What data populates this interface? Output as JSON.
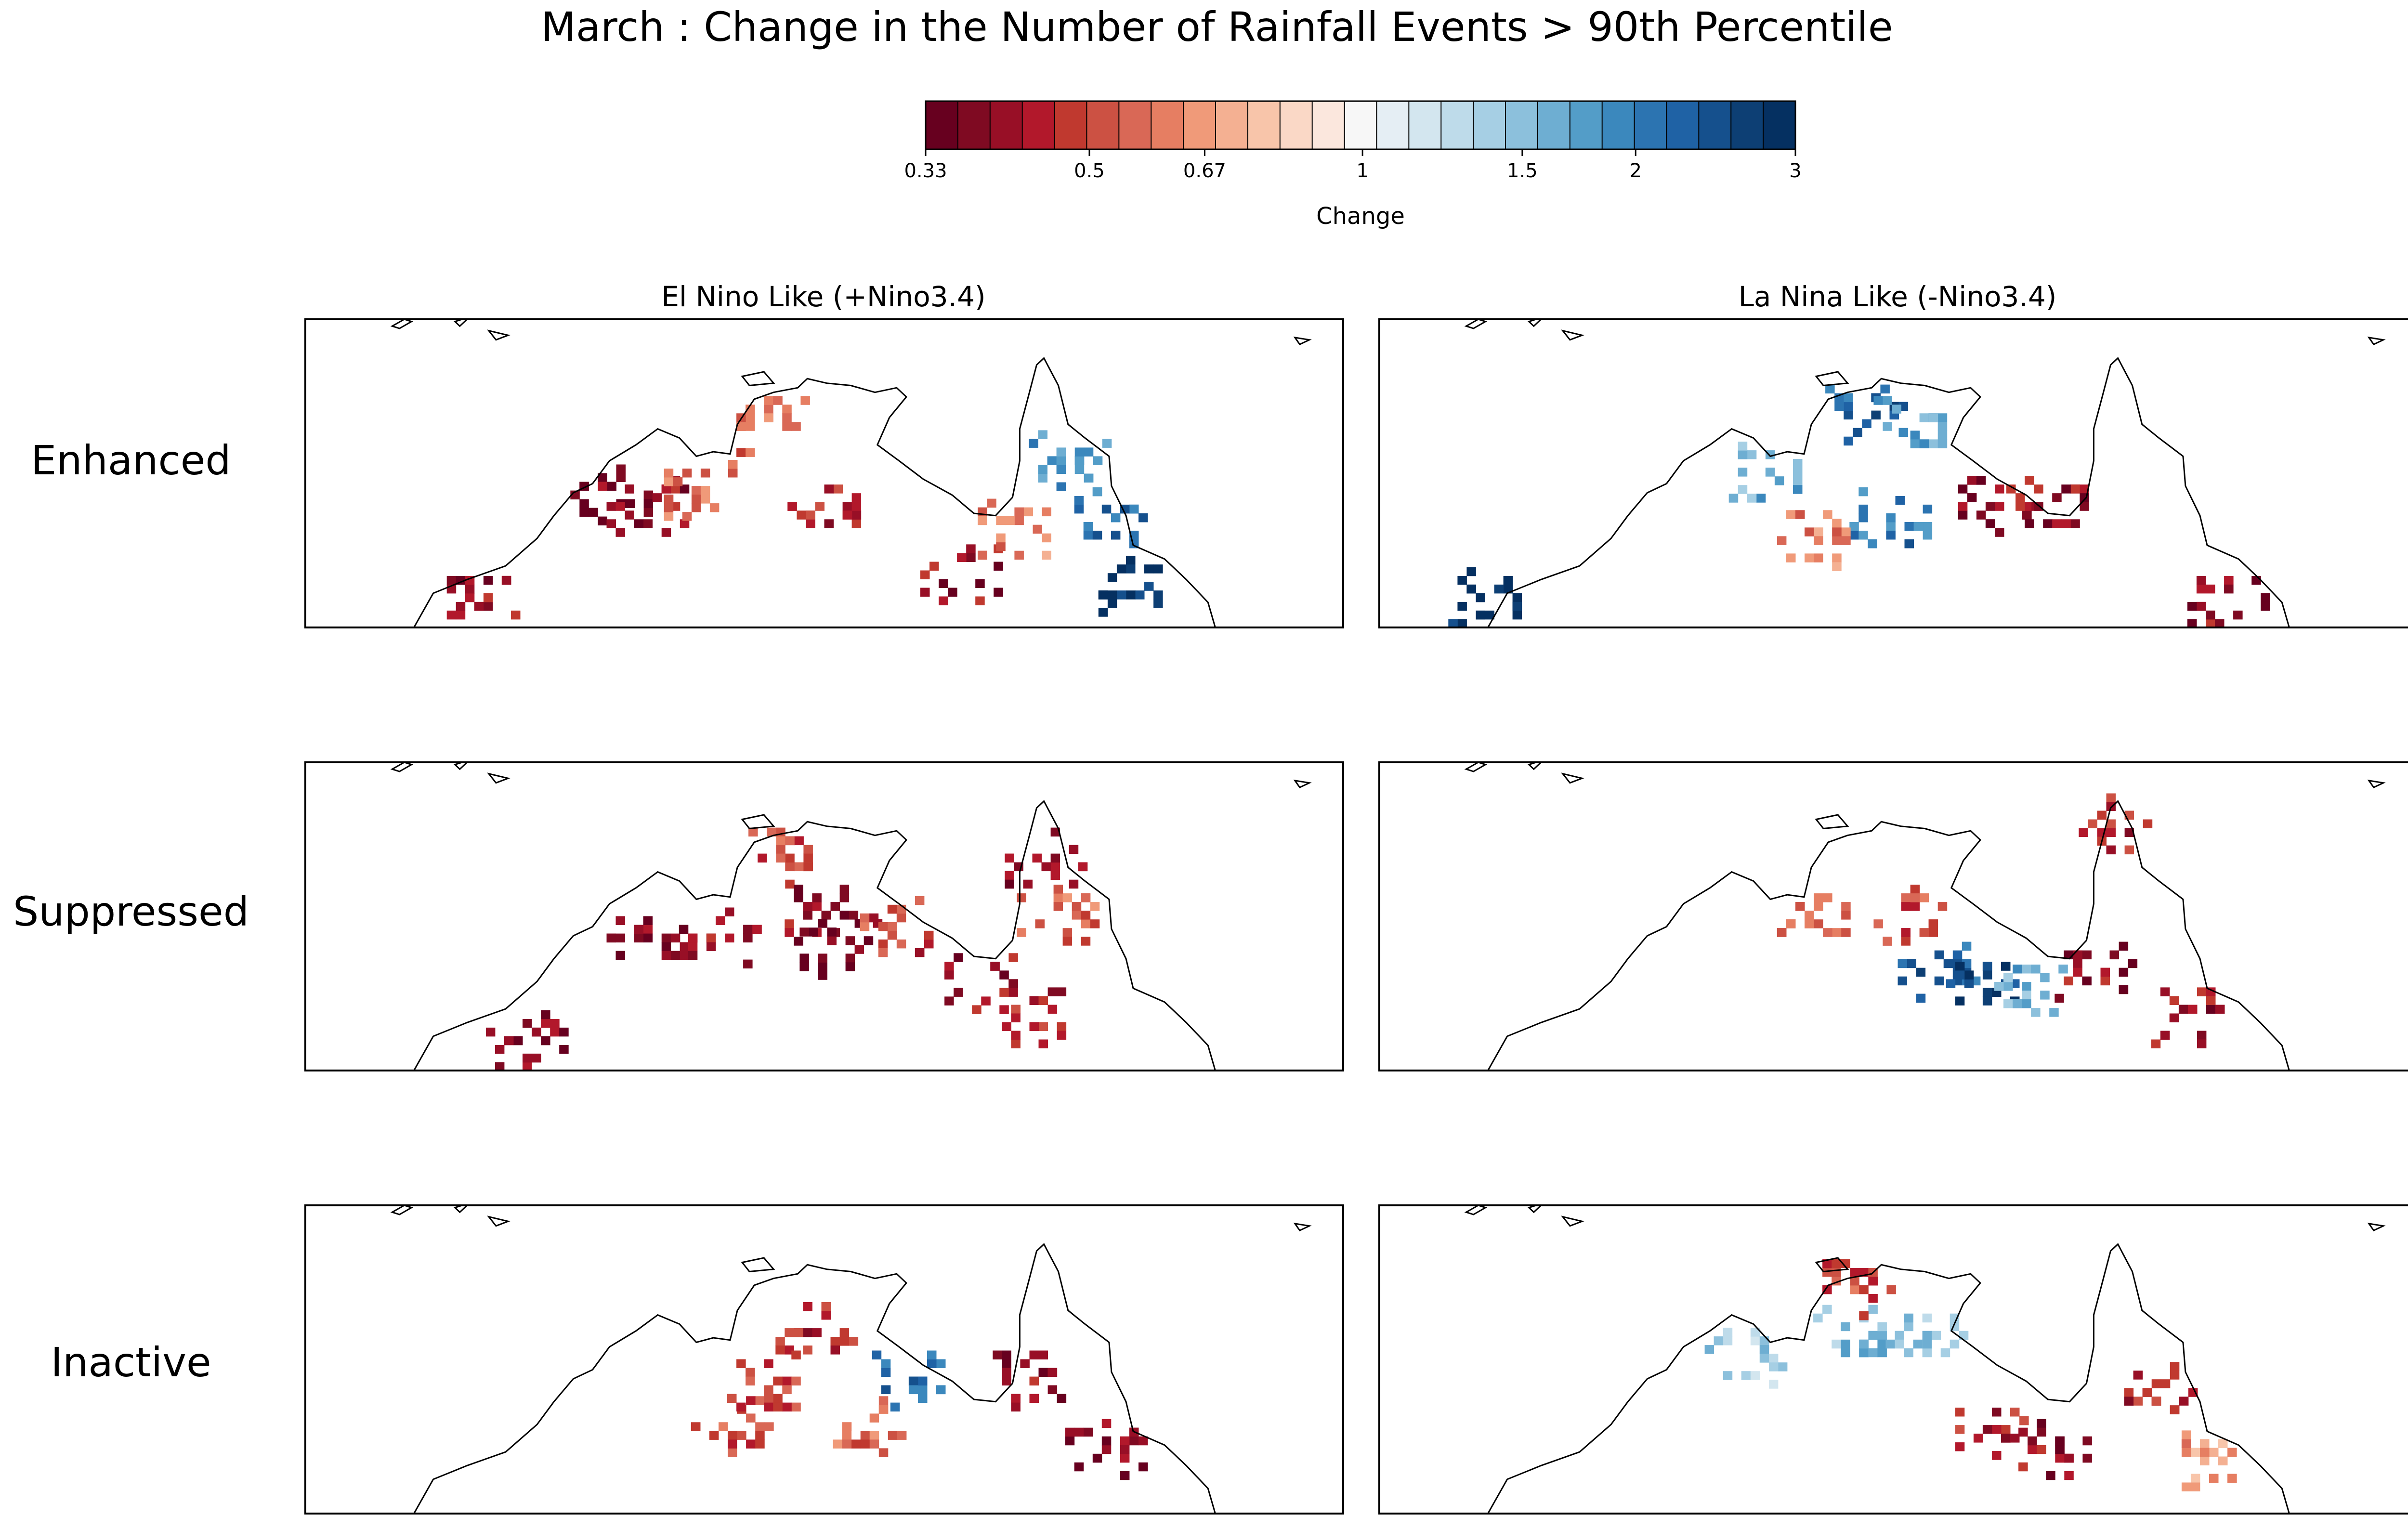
{
  "figure": {
    "title": "March : Change in the Number of Rainfall Events > 90th Percentile",
    "row_labels": [
      "Enhanced",
      "Suppressed",
      "Inactive"
    ],
    "column_titles": [
      "El Nino Like (+Nino3.4)",
      "La Nina Like (-Nino3.4)"
    ]
  },
  "colorbar": {
    "label": "Change",
    "tick_labels": [
      "0.33",
      "0.5",
      "0.67",
      "1",
      "1.5",
      "2",
      "3"
    ],
    "colors": [
      "#67001f",
      "#7f0a22",
      "#980f26",
      "#b2182b",
      "#c0392f",
      "#cc5143",
      "#d96856",
      "#e67e62",
      "#f09a79",
      "#f4b092",
      "#f8c5aa",
      "#fad8c6",
      "#fbe7dd",
      "#f7f7f7",
      "#e5eef4",
      "#d3e6ef",
      "#bedbea",
      "#a6cfe4",
      "#8cc0dc",
      "#6eaed2",
      "#539dc8",
      "#3b88bd",
      "#2c74b1",
      "#1f62a5",
      "#15508d",
      "#0d3f74",
      "#053061"
    ],
    "range": [
      0.33,
      3
    ],
    "scale": "log"
  },
  "chart_data": {
    "type": "heatmap",
    "region": "Northern Australia",
    "color_scale": "RdBu, log scale, 0.33 to 3",
    "panels": [
      {
        "row": "Enhanced",
        "column": "El Nino Like (+Nino3.4)",
        "dominant": "decrease (red), with increases (blue) over eastern Cape York/Queensland",
        "clusters": [
          {
            "lon": 124.5,
            "lat": -16.5,
            "v": 0.36
          },
          {
            "lon": 126,
            "lat": -17,
            "v": 0.4
          },
          {
            "lon": 128,
            "lat": -16.3,
            "v": 0.6
          },
          {
            "lon": 131,
            "lat": -13.5,
            "v": 0.55
          },
          {
            "lon": 133.5,
            "lat": -17,
            "v": 0.45
          },
          {
            "lon": 139,
            "lat": -20,
            "v": 0.4
          },
          {
            "lon": 141,
            "lat": -18,
            "v": 0.6
          },
          {
            "lon": 143.5,
            "lat": -15,
            "v": 1.8
          },
          {
            "lon": 145,
            "lat": -17.5,
            "v": 2.1
          },
          {
            "lon": 146,
            "lat": -20.5,
            "v": 2.9
          },
          {
            "lon": 119,
            "lat": -21,
            "v": 0.4
          }
        ]
      },
      {
        "row": "Enhanced",
        "column": "La Nina Like (-Nino3.4)",
        "dominant": "increase (blue) over Top End and far west, decreases (red) in Gulf region",
        "clusters": [
          {
            "lon": 132,
            "lat": -13,
            "v": 2.2
          },
          {
            "lon": 134,
            "lat": -13.5,
            "v": 1.7
          },
          {
            "lon": 128,
            "lat": -15.5,
            "v": 1.6
          },
          {
            "lon": 116,
            "lat": -21,
            "v": 2.9
          },
          {
            "lon": 133,
            "lat": -17.5,
            "v": 2.0
          },
          {
            "lon": 130,
            "lat": -18.5,
            "v": 0.6
          },
          {
            "lon": 137.5,
            "lat": -17,
            "v": 0.38
          },
          {
            "lon": 139.5,
            "lat": -17,
            "v": 0.4
          },
          {
            "lon": 147,
            "lat": -21,
            "v": 0.4
          }
        ]
      },
      {
        "row": "Suppressed",
        "column": "El Nino Like (+Nino3.4)",
        "dominant": "widespread decrease (red) across the north",
        "clusters": [
          {
            "lon": 126,
            "lat": -16.5,
            "v": 0.38
          },
          {
            "lon": 129,
            "lat": -16.5,
            "v": 0.4
          },
          {
            "lon": 131.5,
            "lat": -13,
            "v": 0.5
          },
          {
            "lon": 133,
            "lat": -15.5,
            "v": 0.4
          },
          {
            "lon": 134,
            "lat": -17,
            "v": 0.36
          },
          {
            "lon": 136.5,
            "lat": -16,
            "v": 0.5
          },
          {
            "lon": 142.5,
            "lat": -13,
            "v": 0.4
          },
          {
            "lon": 143,
            "lat": -15.5,
            "v": 0.55
          },
          {
            "lon": 140,
            "lat": -18.5,
            "v": 0.4
          },
          {
            "lon": 142,
            "lat": -20,
            "v": 0.45
          },
          {
            "lon": 121,
            "lat": -21,
            "v": 0.38
          }
        ]
      },
      {
        "row": "Suppressed",
        "column": "La Nina Like (-Nino3.4)",
        "dominant": "mixed; increases (blue) in interior, decreases (red) on Cape York and Queensland coast",
        "clusters": [
          {
            "lon": 135,
            "lat": -18,
            "v": 2.2
          },
          {
            "lon": 137,
            "lat": -18.5,
            "v": 2.6
          },
          {
            "lon": 139,
            "lat": -19,
            "v": 1.6
          },
          {
            "lon": 142.5,
            "lat": -11.5,
            "v": 0.45
          },
          {
            "lon": 134,
            "lat": -15.5,
            "v": 0.5
          },
          {
            "lon": 141.5,
            "lat": -18,
            "v": 0.4
          },
          {
            "lon": 145.5,
            "lat": -20,
            "v": 0.4
          },
          {
            "lon": 130,
            "lat": -15.5,
            "v": 0.55
          }
        ]
      },
      {
        "row": "Inactive",
        "column": "El Nino Like (+Nino3.4)",
        "dominant": "mostly decrease (red), some increases (blue) near the Gulf",
        "clusters": [
          {
            "lon": 129.5,
            "lat": -18.5,
            "v": 0.5
          },
          {
            "lon": 133,
            "lat": -14,
            "v": 0.45
          },
          {
            "lon": 137,
            "lat": -16.5,
            "v": 2.1
          },
          {
            "lon": 135,
            "lat": -18.5,
            "v": 0.55
          },
          {
            "lon": 142,
            "lat": -16.5,
            "v": 0.4
          },
          {
            "lon": 145,
            "lat": -19.5,
            "v": 0.38
          },
          {
            "lon": 131,
            "lat": -16.5,
            "v": 0.5
          }
        ]
      },
      {
        "row": "Inactive",
        "column": "La Nina Like (-Nino3.4)",
        "dominant": "light increases (blue) over Top End, decreases (red) over Queensland",
        "clusters": [
          {
            "lon": 131.5,
            "lat": -14.5,
            "v": 1.5
          },
          {
            "lon": 134.5,
            "lat": -14.5,
            "v": 1.4
          },
          {
            "lon": 127,
            "lat": -15.5,
            "v": 1.4
          },
          {
            "lon": 146,
            "lat": -20,
            "v": 0.65
          },
          {
            "lon": 144,
            "lat": -17,
            "v": 0.45
          },
          {
            "lon": 137,
            "lat": -19,
            "v": 0.45
          },
          {
            "lon": 140,
            "lat": -19.5,
            "v": 0.4
          },
          {
            "lon": 131.5,
            "lat": -12.5,
            "v": 0.5
          }
        ]
      }
    ]
  }
}
